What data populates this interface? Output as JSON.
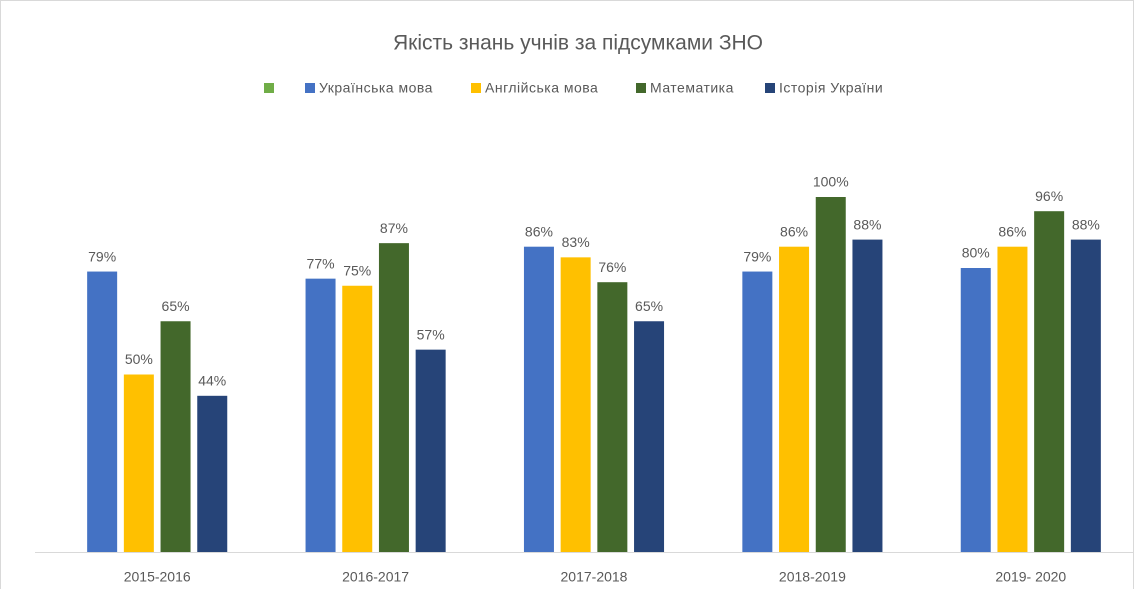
{
  "chart_data": {
    "type": "bar",
    "title": "Якість знань учнів за підсумками ЗНО",
    "categories": [
      "2015-2016",
      "2016-2017",
      "2017-2018",
      "2018-2019",
      "2019- 2020"
    ],
    "series": [
      {
        "name": "Українська мова",
        "color": "#4472c4",
        "values": [
          79,
          77,
          86,
          79,
          80
        ],
        "value_labels": [
          "79%",
          "77%",
          "86%",
          "79%",
          "80%"
        ]
      },
      {
        "name": "Англійська мова",
        "color": "#ffc000",
        "values": [
          50,
          75,
          83,
          86,
          86
        ],
        "value_labels": [
          "50%",
          "75%",
          "83%",
          "86%",
          "86%"
        ]
      },
      {
        "name": "Математика",
        "color": "#43682b",
        "values": [
          65,
          87,
          76,
          100,
          96
        ],
        "value_labels": [
          "65%",
          "87%",
          "76%",
          "100%",
          "96%"
        ]
      },
      {
        "name": "Історія України",
        "color": "#264478",
        "values": [
          44,
          57,
          65,
          88,
          88
        ],
        "value_labels": [
          "44%",
          "57%",
          "65%",
          "88%",
          "88%"
        ]
      }
    ],
    "ylim": [
      0,
      120
    ]
  }
}
